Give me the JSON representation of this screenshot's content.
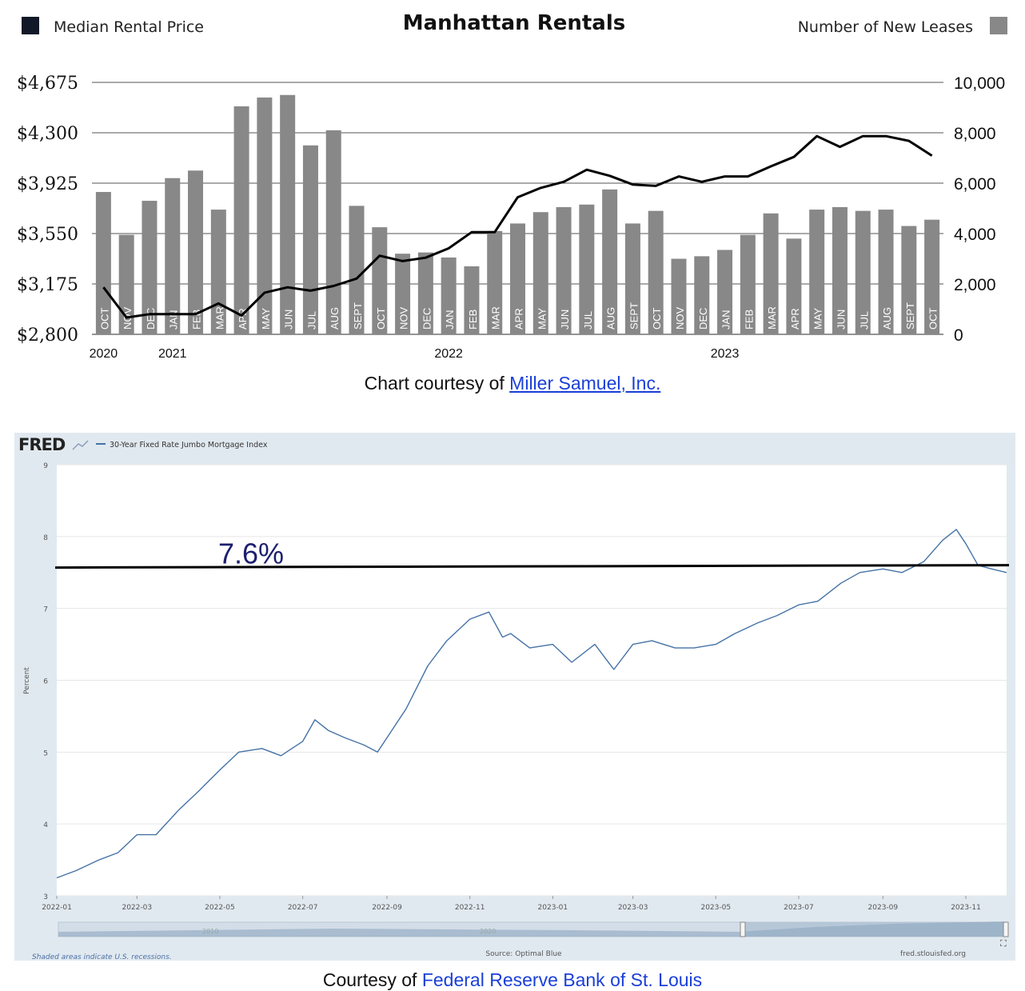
{
  "chart_data": [
    {
      "type": "bar",
      "title": "Manhattan Rentals",
      "legend": {
        "left": {
          "label": "Median Rental Price",
          "color": "#111827"
        },
        "right": {
          "label": "Number of New Leases",
          "color": "#888888"
        }
      },
      "categories": [
        "OCT",
        "NOV",
        "DEC",
        "JAN",
        "FEB",
        "MAR",
        "APR",
        "MAY",
        "JUN",
        "JUL",
        "AUG",
        "SEPT",
        "OCT",
        "NOV",
        "DEC",
        "JAN",
        "FEB",
        "MAR",
        "APR",
        "MAY",
        "JUN",
        "JUL",
        "AUG",
        "SEPT",
        "OCT",
        "NOV",
        "DEC",
        "JAN",
        "FEB",
        "MAR",
        "APR",
        "MAY",
        "JUN",
        "JUL",
        "AUG",
        "SEPT",
        "OCT"
      ],
      "year_labels": [
        {
          "label": "2020",
          "index": 0
        },
        {
          "label": "2021",
          "index": 3
        },
        {
          "label": "2022",
          "index": 15
        },
        {
          "label": "2023",
          "index": 27
        }
      ],
      "series": [
        {
          "name": "Number of New Leases",
          "type": "bar",
          "color": "#888888",
          "values": [
            5650,
            3950,
            5300,
            6200,
            6500,
            4950,
            9050,
            9400,
            9500,
            7500,
            8100,
            5100,
            4250,
            3200,
            3250,
            3050,
            2700,
            4100,
            4400,
            4850,
            5050,
            5150,
            5750,
            4400,
            4900,
            3000,
            3100,
            3350,
            3950,
            4800,
            3800,
            4950,
            5050,
            4900,
            4950,
            4300,
            4550
          ]
        },
        {
          "name": "Median Rental Price",
          "type": "line",
          "color": "#000000",
          "values": [
            3150,
            2925,
            2950,
            2950,
            2950,
            3030,
            2940,
            3110,
            3150,
            3125,
            3160,
            3215,
            3385,
            3345,
            3370,
            3440,
            3560,
            3560,
            3820,
            3890,
            3935,
            4025,
            3980,
            3915,
            3905,
            3975,
            3935,
            3975,
            3975,
            4050,
            4120,
            4275,
            4195,
            4275,
            4275,
            4240,
            4130
          ]
        }
      ],
      "y_left": {
        "ticks": [
          "$2,800",
          "$3,175",
          "$3,550",
          "$3,925",
          "$4,300",
          "$4,675"
        ],
        "range": [
          2800,
          4675
        ]
      },
      "y_right": {
        "ticks": [
          "0",
          "2,000",
          "4,000",
          "6,000",
          "8,000",
          "10,000"
        ],
        "range": [
          0,
          10000
        ]
      },
      "grid": true
    },
    {
      "type": "line",
      "title": "",
      "source_label": "FRED",
      "legend": [
        {
          "label": "30-Year Fixed Rate Jumbo Mortgage Index",
          "color": "#4572a7"
        }
      ],
      "ylabel": "Percent",
      "y_ticks": [
        "3",
        "4",
        "5",
        "6",
        "7",
        "8",
        "9"
      ],
      "ylim": [
        3,
        9
      ],
      "x_ticks": [
        "2022-01",
        "2022-03",
        "2022-05",
        "2022-07",
        "2022-09",
        "2022-11",
        "2023-01",
        "2023-03",
        "2023-05",
        "2023-07",
        "2023-09",
        "2023-11"
      ],
      "xlim": [
        "2022-01-01",
        "2023-12-01"
      ],
      "reference_line": {
        "value": 7.58,
        "label": "7.6%"
      },
      "series": [
        {
          "name": "30-Year Fixed Rate Jumbo Mortgage Index",
          "color": "#4572a7",
          "points": [
            [
              "2022-01-01",
              3.25
            ],
            [
              "2022-01-15",
              3.35
            ],
            [
              "2022-02-01",
              3.5
            ],
            [
              "2022-02-15",
              3.6
            ],
            [
              "2022-03-01",
              3.85
            ],
            [
              "2022-03-15",
              3.85
            ],
            [
              "2022-04-01",
              4.2
            ],
            [
              "2022-04-15",
              4.45
            ],
            [
              "2022-05-01",
              4.75
            ],
            [
              "2022-05-15",
              5.0
            ],
            [
              "2022-06-01",
              5.05
            ],
            [
              "2022-06-15",
              4.95
            ],
            [
              "2022-07-01",
              5.15
            ],
            [
              "2022-07-10",
              5.45
            ],
            [
              "2022-07-20",
              5.3
            ],
            [
              "2022-08-01",
              5.2
            ],
            [
              "2022-08-15",
              5.1
            ],
            [
              "2022-08-25",
              5.0
            ],
            [
              "2022-09-01",
              5.2
            ],
            [
              "2022-09-15",
              5.6
            ],
            [
              "2022-10-01",
              6.2
            ],
            [
              "2022-10-15",
              6.55
            ],
            [
              "2022-11-01",
              6.85
            ],
            [
              "2022-11-15",
              6.95
            ],
            [
              "2022-11-25",
              6.6
            ],
            [
              "2022-12-01",
              6.65
            ],
            [
              "2022-12-15",
              6.45
            ],
            [
              "2023-01-01",
              6.5
            ],
            [
              "2023-01-15",
              6.25
            ],
            [
              "2023-02-01",
              6.5
            ],
            [
              "2023-02-15",
              6.15
            ],
            [
              "2023-03-01",
              6.5
            ],
            [
              "2023-03-15",
              6.55
            ],
            [
              "2023-04-01",
              6.45
            ],
            [
              "2023-04-15",
              6.45
            ],
            [
              "2023-05-01",
              6.5
            ],
            [
              "2023-05-15",
              6.65
            ],
            [
              "2023-06-01",
              6.8
            ],
            [
              "2023-06-15",
              6.9
            ],
            [
              "2023-07-01",
              7.05
            ],
            [
              "2023-07-15",
              7.1
            ],
            [
              "2023-08-01",
              7.35
            ],
            [
              "2023-08-15",
              7.5
            ],
            [
              "2023-09-01",
              7.55
            ],
            [
              "2023-09-15",
              7.5
            ],
            [
              "2023-10-01",
              7.65
            ],
            [
              "2023-10-15",
              7.95
            ],
            [
              "2023-10-25",
              8.1
            ],
            [
              "2023-11-01",
              7.9
            ],
            [
              "2023-11-10",
              7.6
            ],
            [
              "2023-11-20",
              7.55
            ],
            [
              "2023-12-01",
              7.5
            ]
          ]
        }
      ],
      "range_selector_labels": [
        "2010",
        "2020"
      ],
      "note": "Shaded areas indicate U.S. recessions.",
      "source": "Source: Optimal Blue",
      "site": "fred.stlouisfed.org"
    }
  ],
  "captions": {
    "chart1_prefix": "Chart courtesy of ",
    "chart1_link": "Miller Samuel, Inc.",
    "chart2_prefix": "Courtesy of ",
    "chart2_link": "Federal Reserve Bank of St. Louis"
  }
}
